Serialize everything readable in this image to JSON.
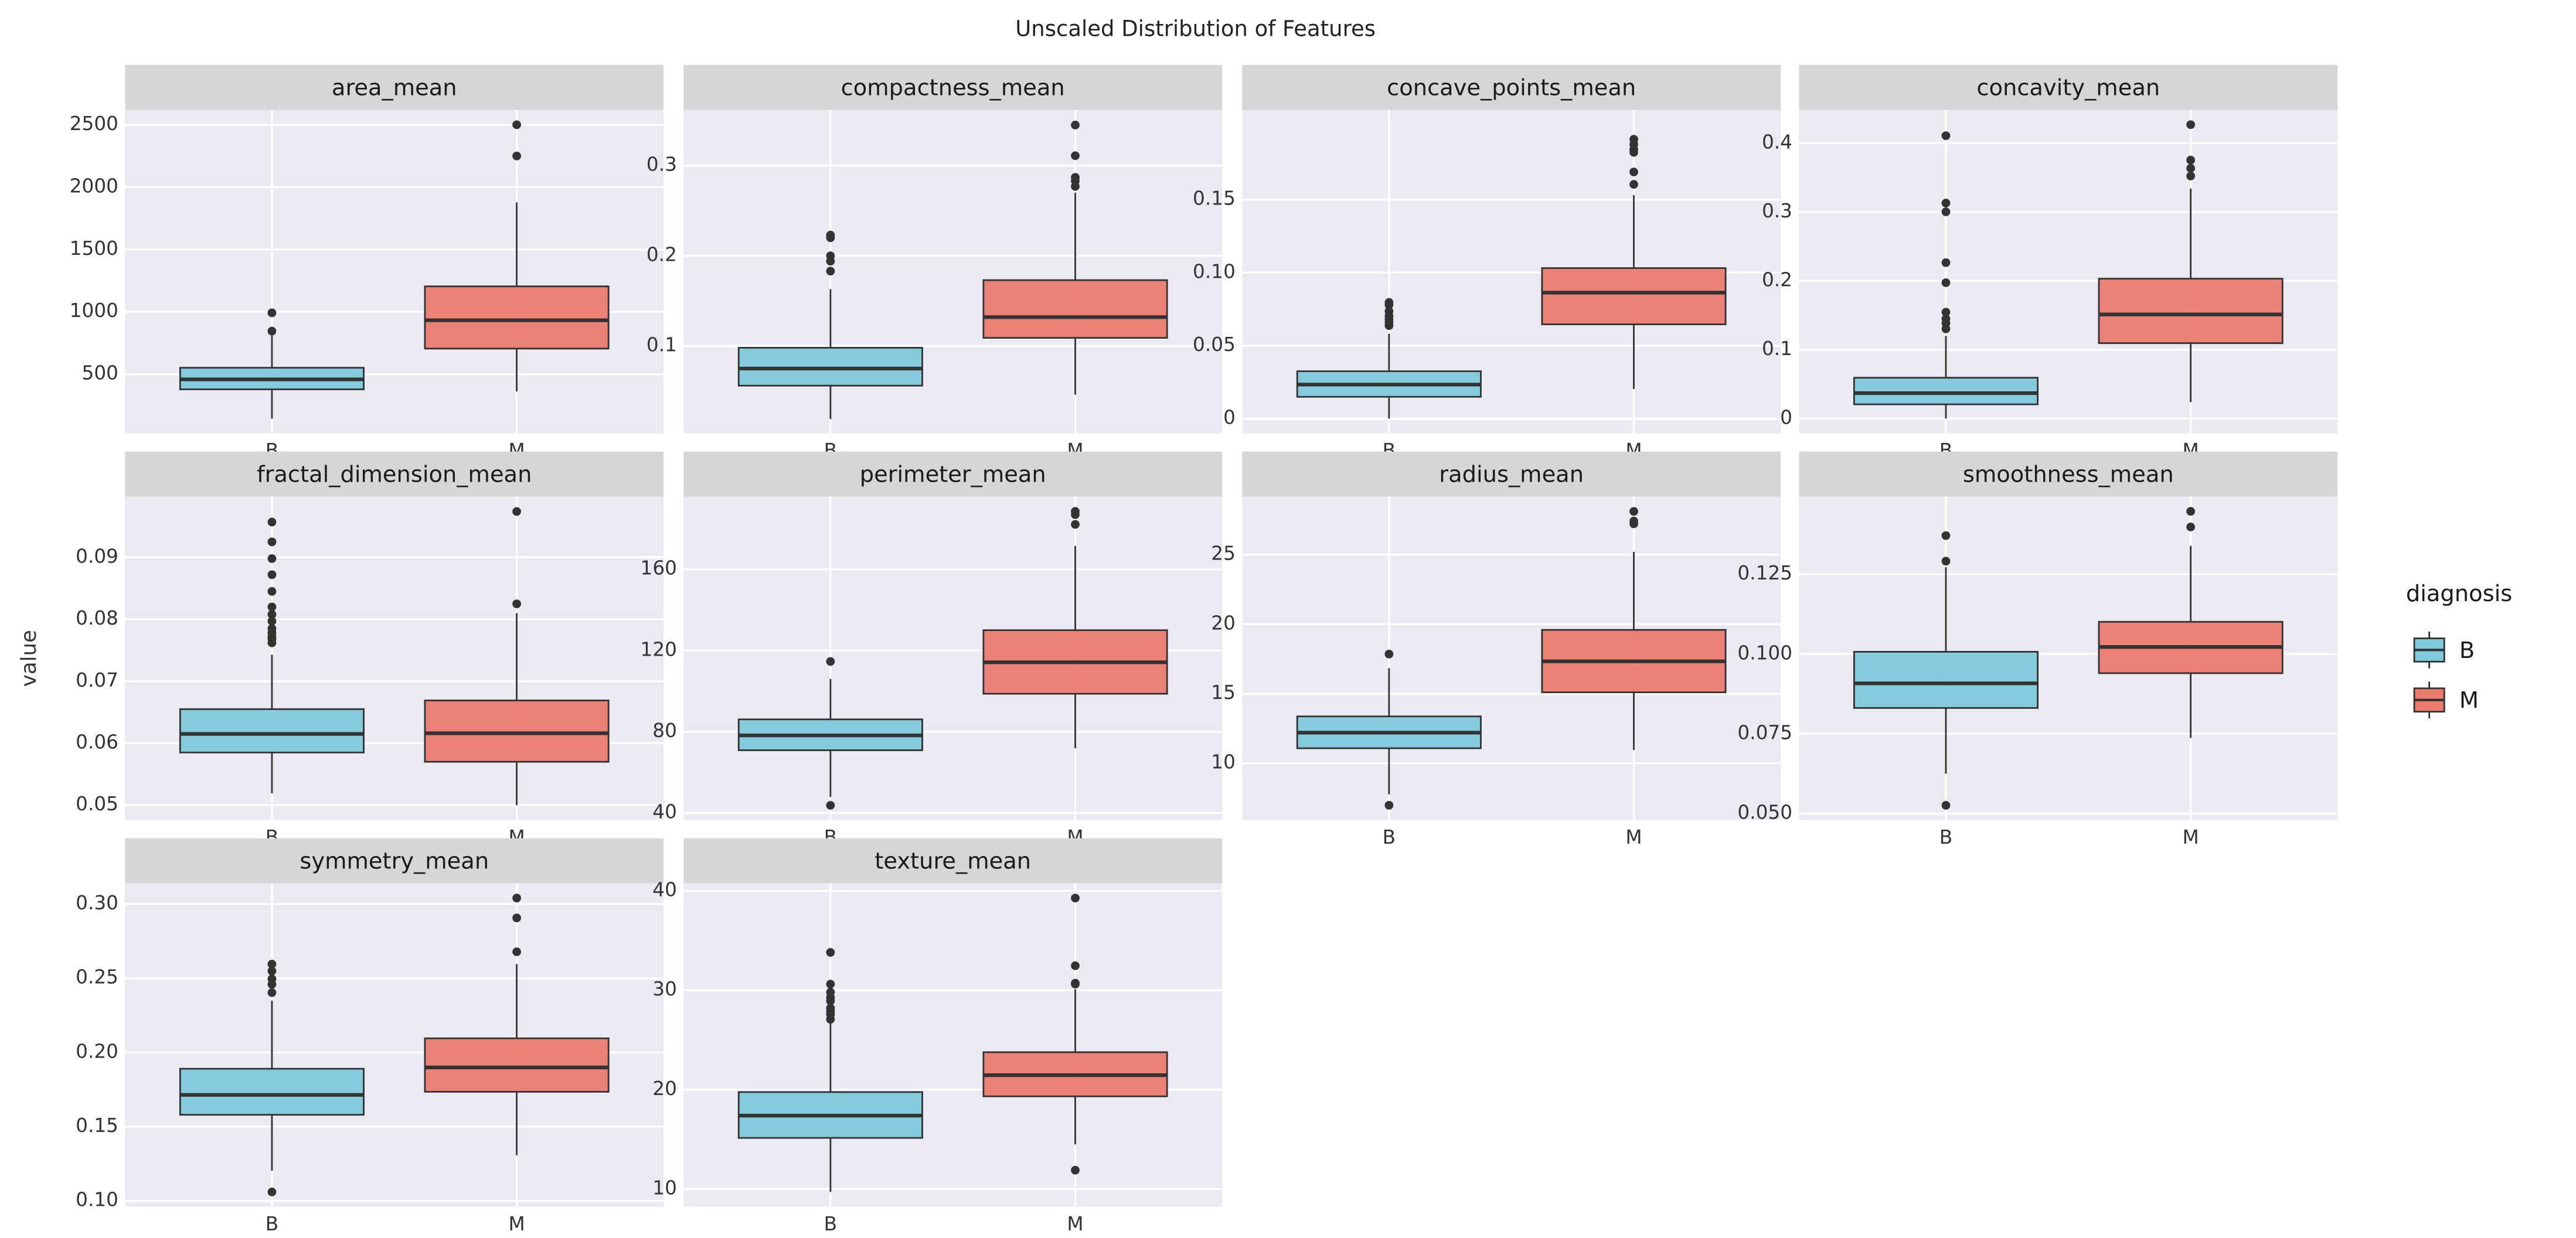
{
  "title": "Unscaled Distribution of Features",
  "y_label": "value",
  "legend": {
    "title": "diagnosis",
    "position": "right",
    "entries": [
      "B",
      "M"
    ],
    "colors": [
      "#7ecadb",
      "#ec7b6e"
    ]
  },
  "chart_data": [
    {
      "type": "box",
      "title": "area_mean",
      "categories": [
        "B",
        "M"
      ],
      "boxes": [
        {
          "min": 143.5,
          "q1": 378,
          "median": 458,
          "q3": 551,
          "max": 810,
          "outliers": [
            845,
            992
          ]
        },
        {
          "min": 361.6,
          "q1": 705,
          "median": 932,
          "q3": 1204,
          "max": 1878,
          "outliers": [
            2250,
            2501
          ]
        }
      ],
      "ylim": [
        25,
        2619
      ],
      "yticks": [
        500,
        1000,
        1500,
        2000,
        2500
      ]
    },
    {
      "type": "box",
      "title": "compactness_mean",
      "categories": [
        "B",
        "M"
      ],
      "boxes": [
        {
          "min": 0.019,
          "q1": 0.056,
          "median": 0.075,
          "q3": 0.098,
          "max": 0.163,
          "outliers": [
            0.183,
            0.194,
            0.2,
            0.22,
            0.223
          ]
        },
        {
          "min": 0.046,
          "q1": 0.109,
          "median": 0.132,
          "q3": 0.173,
          "max": 0.27,
          "outliers": [
            0.277,
            0.283,
            0.287,
            0.311,
            0.345
          ]
        }
      ],
      "ylim": [
        0.0031,
        0.3617
      ],
      "yticks": [
        0.1,
        0.2,
        0.3
      ]
    },
    {
      "type": "box",
      "title": "concave_points_mean",
      "categories": [
        "B",
        "M"
      ],
      "boxes": [
        {
          "min": 0,
          "q1": 0.015,
          "median": 0.0234,
          "q3": 0.0325,
          "max": 0.0582,
          "outliers": [
            0.0637,
            0.0659,
            0.068,
            0.0702,
            0.0735,
            0.0779,
            0.0796
          ]
        },
        {
          "min": 0.0203,
          "q1": 0.0646,
          "median": 0.0863,
          "q3": 0.1031,
          "max": 0.153,
          "outliers": [
            0.1604,
            0.1689,
            0.1823,
            0.1845,
            0.1878,
            0.1913
          ]
        }
      ],
      "ylim": [
        -0.01,
        0.2113
      ],
      "yticks": [
        0,
        0.05,
        {
          "value": 0.1,
          "label": "0.10"
        },
        0.15
      ]
    },
    {
      "type": "box",
      "title": "concavity_mean",
      "categories": [
        "B",
        "M"
      ],
      "boxes": [
        {
          "min": 0,
          "q1": 0.0208,
          "median": 0.0371,
          "q3": 0.0594,
          "max": 0.12,
          "outliers": [
            0.1304,
            0.1386,
            0.145,
            0.1546,
            0.1974,
            0.2265,
            0.3003,
            0.313,
            0.4108
          ]
        },
        {
          "min": 0.024,
          "q1": 0.1096,
          "median": 0.1513,
          "q3": 0.2032,
          "max": 0.3339,
          "outliers": [
            0.3523,
            0.3635,
            0.3754,
            0.4268
          ]
        }
      ],
      "ylim": [
        -0.0213,
        0.4481
      ],
      "yticks": [
        0,
        0.1,
        0.2,
        0.3,
        0.4
      ]
    },
    {
      "type": "box",
      "title": "fractal_dimension_mean",
      "categories": [
        "B",
        "M"
      ],
      "boxes": [
        {
          "min": 0.0519,
          "q1": 0.0585,
          "median": 0.0615,
          "q3": 0.0655,
          "max": 0.0743,
          "outliers": [
            0.0762,
            0.0768,
            0.0772,
            0.0778,
            0.0785,
            0.0797,
            0.0808,
            0.082,
            0.0845,
            0.0872,
            0.0898,
            0.0925,
            0.0957
          ]
        },
        {
          "min": 0.05,
          "q1": 0.057,
          "median": 0.0616,
          "q3": 0.0669,
          "max": 0.081,
          "outliers": [
            0.0825,
            0.0974
          ]
        }
      ],
      "ylim": [
        0.0476,
        0.0998
      ],
      "yticks": [
        0.05,
        0.06,
        0.07,
        0.08,
        0.09
      ]
    },
    {
      "type": "box",
      "title": "perimeter_mean",
      "categories": [
        "B",
        "M"
      ],
      "boxes": [
        {
          "min": 47.9,
          "q1": 70.9,
          "median": 78.2,
          "q3": 86.1,
          "max": 106,
          "outliers": [
            43.79,
            114.6
          ]
        },
        {
          "min": 71.9,
          "q1": 98.7,
          "median": 114.2,
          "q3": 130,
          "max": 171.5,
          "outliers": [
            182.1,
            186.9,
            188.5
          ]
        }
      ],
      "ylim": [
        36.55,
        195.74
      ],
      "yticks": [
        40,
        80,
        120,
        160
      ]
    },
    {
      "type": "box",
      "title": "radius_mean",
      "categories": [
        "B",
        "M"
      ],
      "boxes": [
        {
          "min": 7.76,
          "q1": 11.08,
          "median": 12.2,
          "q3": 13.37,
          "max": 16.84,
          "outliers": [
            6.98,
            17.85
          ]
        },
        {
          "min": 10.95,
          "q1": 15.1,
          "median": 17.33,
          "q3": 19.59,
          "max": 25.2,
          "outliers": [
            27.22,
            27.42,
            28.11
          ]
        }
      ],
      "ylim": [
        5.92,
        29.17
      ],
      "yticks": [
        10,
        15,
        20,
        25
      ]
    },
    {
      "type": "box",
      "title": "smoothness_mean",
      "categories": [
        "B",
        "M"
      ],
      "boxes": [
        {
          "min": 0.0625,
          "q1": 0.0831,
          "median": 0.0908,
          "q3": 0.1007,
          "max": 0.1272,
          "outliers": [
            0.0526,
            0.1291,
            0.1371
          ]
        },
        {
          "min": 0.0737,
          "q1": 0.094,
          "median": 0.1022,
          "q3": 0.1101,
          "max": 0.1339,
          "outliers": [
            0.1398,
            0.1447
          ]
        }
      ],
      "ylim": [
        0.048,
        0.1493
      ],
      "yticks": [
        {
          "value": 0.05,
          "label": "0.050"
        },
        0.075,
        {
          "value": 0.1,
          "label": "0.100"
        },
        0.125
      ]
    },
    {
      "type": "box",
      "title": "symmetry_mean",
      "categories": [
        "B",
        "M"
      ],
      "boxes": [
        {
          "min": 0.1203,
          "q1": 0.158,
          "median": 0.1714,
          "q3": 0.189,
          "max": 0.2349,
          "outliers": [
            0.106,
            0.2403,
            0.2459,
            0.2495,
            0.2548,
            0.2595
          ]
        },
        {
          "min": 0.1308,
          "q1": 0.1735,
          "median": 0.1899,
          "q3": 0.2095,
          "max": 0.2595,
          "outliers": [
            0.2678,
            0.2906,
            0.304
          ]
        }
      ],
      "ylim": [
        0.0961,
        0.3139
      ],
      "yticks": [
        {
          "value": 0.1,
          "label": "0.10"
        },
        0.15,
        {
          "value": 0.2,
          "label": "0.20"
        },
        0.25,
        {
          "value": 0.3,
          "label": "0.30"
        }
      ]
    },
    {
      "type": "box",
      "title": "texture_mean",
      "categories": [
        "B",
        "M"
      ],
      "boxes": [
        {
          "min": 9.71,
          "q1": 15.15,
          "median": 17.39,
          "q3": 19.76,
          "max": 26.99,
          "outliers": [
            27.08,
            27.57,
            27.85,
            28.21,
            28.92,
            29.29,
            29.81,
            30.62,
            33.81
          ]
        },
        {
          "min": 14.5,
          "q1": 19.33,
          "median": 21.46,
          "q3": 23.77,
          "max": 30.1,
          "outliers": [
            11.9,
            30.62,
            30.72,
            32.47,
            39.28
          ]
        }
      ],
      "ylim": [
        8.23,
        40.76
      ],
      "yticks": [
        10,
        20,
        30,
        40
      ]
    }
  ]
}
